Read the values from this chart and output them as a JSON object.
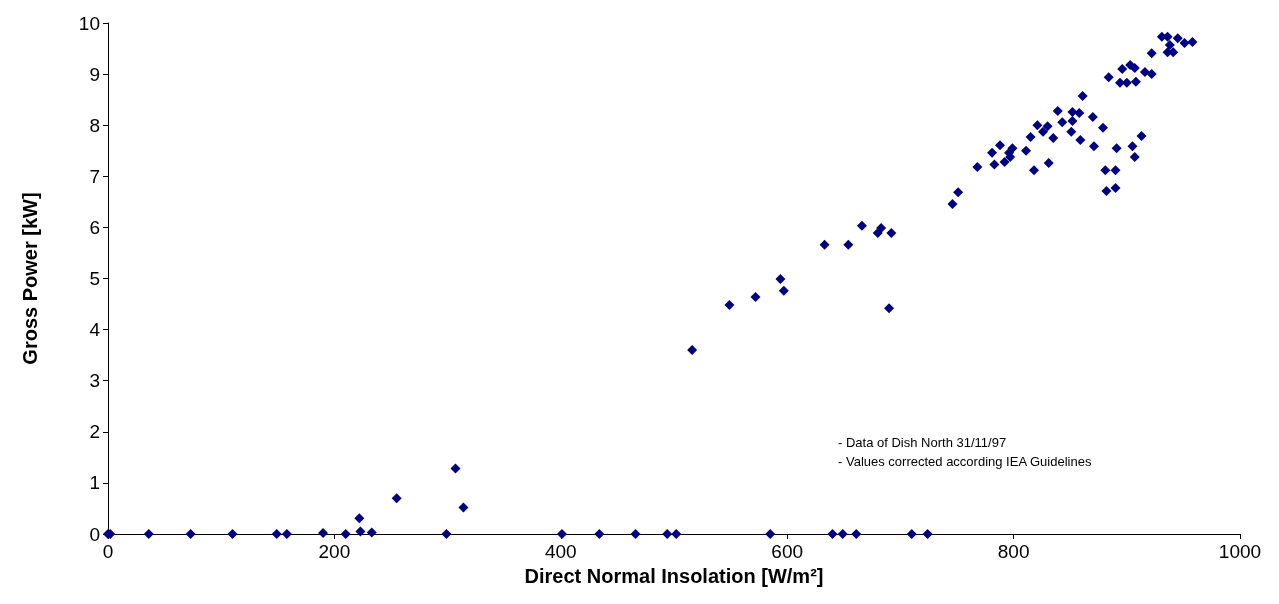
{
  "chart_data": {
    "type": "scatter",
    "xlabel": "Direct Normal Insolation [W/m²]",
    "ylabel": "Gross Power [kW]",
    "annotations": [
      "- Data of Dish North 31/11/97",
      "- Values corrected according IEA Guidelines"
    ],
    "marker": "diamond",
    "grid": false,
    "xlim": [
      0,
      1000
    ],
    "xticks": [
      0,
      200,
      400,
      600,
      800,
      1000
    ],
    "ylim": [
      0,
      10
    ],
    "yticks": [
      0,
      1,
      2,
      3,
      4,
      5,
      6,
      7,
      8,
      9,
      10
    ],
    "series": [
      {
        "color": "#000080",
        "x": [
          0,
          2,
          36,
          73,
          110,
          149,
          158,
          190,
          210,
          222,
          223,
          233,
          255,
          299,
          307,
          314,
          401,
          434,
          466,
          494,
          502,
          585,
          640,
          649,
          661,
          710,
          724,
          516,
          549,
          572,
          594,
          597,
          633,
          654,
          666,
          680,
          683,
          692,
          690,
          746,
          751,
          768,
          783,
          781,
          788,
          792,
          797,
          799,
          796,
          811,
          815,
          818,
          821,
          830,
          826,
          835,
          831,
          839,
          843,
          852,
          852,
          851,
          858,
          859,
          861,
          870,
          879,
          871,
          881,
          890,
          882,
          890,
          891,
          884,
          905,
          907,
          913,
          896,
          894,
          900,
          903,
          907,
          908,
          916,
          922,
          922,
          931,
          936,
          945,
          958,
          938,
          941,
          936,
          951
        ],
        "values": [
          0,
          0,
          0,
          0,
          0,
          0,
          0,
          0.02,
          0,
          0.31,
          0.05,
          0.03,
          0.7,
          0,
          1.28,
          0.52,
          0,
          0,
          0,
          0,
          0,
          0,
          0,
          0,
          0,
          0,
          0,
          3.6,
          4.48,
          4.64,
          4.99,
          4.76,
          5.66,
          5.66,
          6.03,
          5.89,
          5.99,
          5.89,
          4.42,
          6.46,
          6.69,
          7.18,
          7.23,
          7.46,
          7.61,
          7.28,
          7.38,
          7.55,
          7.46,
          7.5,
          7.77,
          7.12,
          8.0,
          7.98,
          7.87,
          7.75,
          7.26,
          8.28,
          8.06,
          8.08,
          8.26,
          7.87,
          8.24,
          7.71,
          8.57,
          8.16,
          7.95,
          7.59,
          7.12,
          7.12,
          6.71,
          6.77,
          7.55,
          8.94,
          7.59,
          7.38,
          7.79,
          9.1,
          8.83,
          8.83,
          9.18,
          9.12,
          8.85,
          9.04,
          9.0,
          9.41,
          9.73,
          9.73,
          9.7,
          9.63,
          9.57,
          9.43,
          9.43,
          9.61
        ]
      }
    ]
  }
}
